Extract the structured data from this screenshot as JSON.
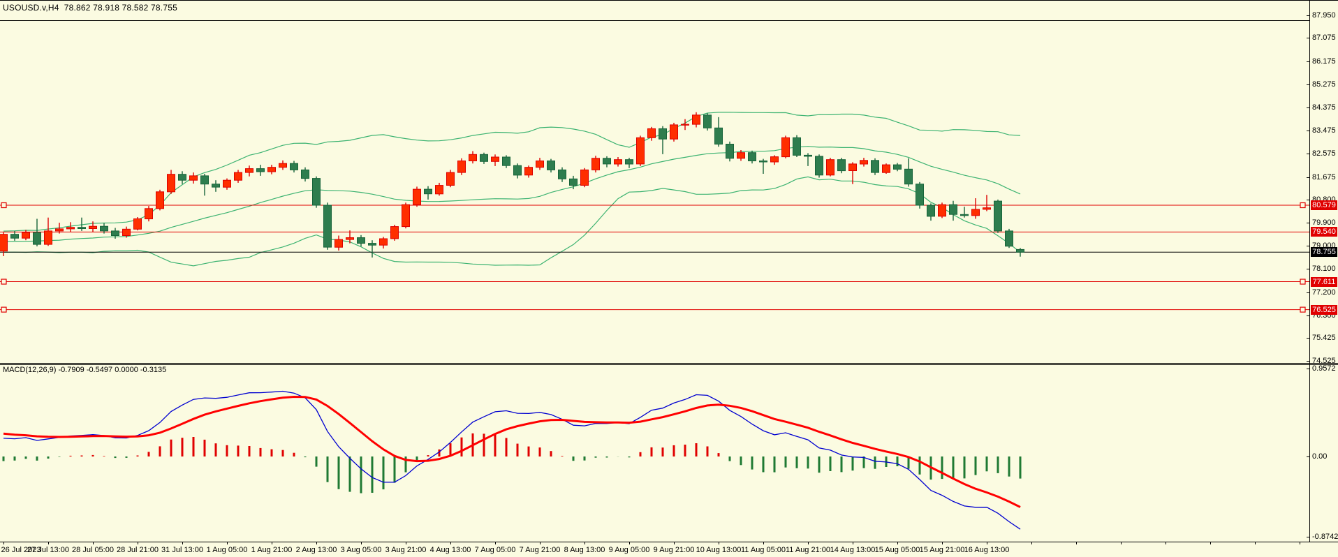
{
  "window": {
    "title": "USOUSD.v,H4  78.862 78.918 78.582 78.755",
    "macd_label": "MACD(12,26,9) -0.7909 -0.5497 0.0000 -0.3135"
  },
  "colors": {
    "background": "#FBFBE1",
    "frame": "#000000",
    "bull_fill": "#FF2E00",
    "bull_border": "#DD0000",
    "bear_fill": "#2E7D4E",
    "bear_border": "#17643A",
    "bollinger": "#3CB371",
    "level_line": "#E00000",
    "bid_line": "#000000",
    "macd_line": "#0000D0",
    "signal_line": "#FF0000",
    "hist_positive": "#E00000",
    "hist_negative": "#1F7A33",
    "badge_red_bg": "#E00000",
    "badge_black_bg": "#000000",
    "badge_text": "#FFFFFF"
  },
  "price_axis": {
    "ticks": [
      "87.950",
      "87.075",
      "86.175",
      "85.275",
      "84.375",
      "83.475",
      "82.575",
      "81.675",
      "80.800",
      "79.900",
      "79.000",
      "78.100",
      "77.200",
      "76.300",
      "75.425",
      "74.525"
    ]
  },
  "macd_axis": {
    "ticks": [
      {
        "label": "0.9572",
        "value": 0.9572
      },
      {
        "label": "0.00",
        "value": 0.0
      },
      {
        "label": "-0.8742",
        "value": -0.8742
      }
    ]
  },
  "time_axis": {
    "labels": [
      "26 Jul 2023",
      "27 Jul 13:00",
      "28 Jul 05:00",
      "28 Jul 21:00",
      "31 Jul 13:00",
      "1 Aug 05:00",
      "1 Aug 21:00",
      "2 Aug 13:00",
      "3 Aug 05:00",
      "3 Aug 21:00",
      "4 Aug 13:00",
      "7 Aug 05:00",
      "7 Aug 21:00",
      "8 Aug 13:00",
      "9 Aug 05:00",
      "9 Aug 21:00",
      "10 Aug 13:00",
      "11 Aug 05:00",
      "11 Aug 21:00",
      "14 Aug 13:00",
      "15 Aug 05:00",
      "15 Aug 21:00",
      "16 Aug 13:00"
    ]
  },
  "price_lines": [
    {
      "price": 80.579,
      "label": "80.579",
      "style": "red",
      "end_squares": true
    },
    {
      "price": 79.54,
      "label": "79.540",
      "style": "red",
      "end_squares": false
    },
    {
      "price": 78.755,
      "label": "78.755",
      "style": "black",
      "end_squares": false
    },
    {
      "price": 77.611,
      "label": "77.611",
      "style": "red",
      "end_squares": true
    },
    {
      "price": 76.525,
      "label": "76.525",
      "style": "red",
      "end_squares": true
    }
  ],
  "chart_data": {
    "type": "candlestick",
    "symbol": "USOUSD.v",
    "timeframe": "H4",
    "last_ohlc": {
      "open": 78.862,
      "high": 78.918,
      "low": 78.582,
      "close": 78.755
    },
    "up_color_meaning": "bullish candles are red, bearish candles are green",
    "indicators": {
      "bollinger": {
        "period": 20,
        "deviation": 2
      },
      "macd": {
        "fast": 12,
        "slow": 26,
        "signal": 9,
        "current": [
          -0.7909,
          -0.5497,
          0.0,
          -0.3135
        ]
      }
    },
    "ylim_main": [
      74.45,
      88.52
    ],
    "ylim_macd": [
      -0.8742,
      0.9572
    ],
    "candles": [
      [
        78.8,
        79.52,
        78.6,
        79.45
      ],
      [
        79.45,
        79.58,
        79.2,
        79.3
      ],
      [
        79.3,
        79.62,
        79.22,
        79.52
      ],
      [
        79.52,
        80.05,
        78.98,
        79.06
      ],
      [
        79.06,
        80.1,
        79.0,
        79.58
      ],
      [
        79.58,
        79.9,
        79.48,
        79.66
      ],
      [
        79.66,
        79.92,
        79.55,
        79.72
      ],
      [
        79.72,
        80.1,
        79.58,
        79.67
      ],
      [
        79.67,
        79.95,
        79.55,
        79.76
      ],
      [
        79.76,
        79.88,
        79.48,
        79.58
      ],
      [
        79.58,
        79.7,
        79.28,
        79.4
      ],
      [
        79.4,
        79.75,
        79.32,
        79.65
      ],
      [
        79.65,
        80.12,
        79.6,
        80.05
      ],
      [
        80.05,
        80.55,
        79.95,
        80.45
      ],
      [
        80.45,
        81.18,
        80.38,
        81.1
      ],
      [
        81.1,
        81.95,
        81.02,
        81.78
      ],
      [
        81.78,
        81.9,
        81.4,
        81.55
      ],
      [
        81.55,
        81.85,
        81.42,
        81.72
      ],
      [
        81.72,
        81.8,
        80.95,
        81.4
      ],
      [
        81.4,
        81.55,
        81.1,
        81.28
      ],
      [
        81.28,
        81.62,
        81.18,
        81.55
      ],
      [
        81.55,
        81.95,
        81.45,
        81.85
      ],
      [
        81.85,
        82.12,
        81.7,
        82.0
      ],
      [
        82.0,
        82.15,
        81.72,
        81.88
      ],
      [
        81.88,
        82.15,
        81.78,
        82.05
      ],
      [
        82.05,
        82.32,
        81.95,
        82.2
      ],
      [
        82.2,
        82.3,
        81.85,
        81.95
      ],
      [
        81.95,
        82.05,
        81.5,
        81.62
      ],
      [
        81.62,
        81.7,
        80.48,
        80.58
      ],
      [
        80.58,
        80.68,
        78.85,
        78.95
      ],
      [
        78.95,
        79.4,
        78.82,
        79.25
      ],
      [
        79.25,
        79.6,
        79.1,
        79.32
      ],
      [
        79.32,
        79.42,
        78.98,
        79.1
      ],
      [
        79.1,
        79.22,
        78.55,
        79.03
      ],
      [
        79.03,
        79.35,
        78.9,
        79.28
      ],
      [
        79.28,
        79.82,
        79.2,
        79.75
      ],
      [
        79.75,
        80.68,
        79.68,
        80.6
      ],
      [
        80.6,
        81.3,
        80.52,
        81.2
      ],
      [
        81.2,
        81.32,
        80.8,
        81.02
      ],
      [
        81.02,
        81.45,
        80.95,
        81.35
      ],
      [
        81.35,
        81.95,
        81.28,
        81.85
      ],
      [
        81.85,
        82.4,
        81.75,
        82.3
      ],
      [
        82.3,
        82.68,
        82.2,
        82.55
      ],
      [
        82.55,
        82.62,
        82.18,
        82.28
      ],
      [
        82.28,
        82.55,
        82.1,
        82.45
      ],
      [
        82.45,
        82.52,
        82.02,
        82.12
      ],
      [
        82.12,
        82.2,
        81.62,
        81.75
      ],
      [
        81.75,
        82.12,
        81.65,
        82.05
      ],
      [
        82.05,
        82.42,
        81.95,
        82.3
      ],
      [
        82.3,
        82.38,
        81.85,
        81.95
      ],
      [
        81.95,
        82.05,
        81.48,
        81.6
      ],
      [
        81.6,
        81.72,
        81.2,
        81.35
      ],
      [
        81.35,
        82.02,
        81.28,
        81.95
      ],
      [
        81.95,
        82.5,
        81.85,
        82.4
      ],
      [
        82.4,
        82.48,
        82.05,
        82.18
      ],
      [
        82.18,
        82.45,
        82.08,
        82.35
      ],
      [
        82.35,
        82.42,
        82.02,
        82.18
      ],
      [
        82.18,
        83.28,
        82.1,
        83.2
      ],
      [
        83.2,
        83.62,
        83.08,
        83.55
      ],
      [
        83.55,
        83.65,
        82.56,
        83.15
      ],
      [
        83.15,
        83.78,
        83.05,
        83.7
      ],
      [
        83.7,
        83.92,
        83.5,
        83.72
      ],
      [
        83.72,
        84.19,
        83.6,
        84.08
      ],
      [
        84.08,
        84.15,
        83.48,
        83.58
      ],
      [
        83.58,
        84.0,
        82.85,
        82.95
      ],
      [
        82.95,
        83.05,
        82.28,
        82.4
      ],
      [
        82.4,
        82.72,
        82.3,
        82.62
      ],
      [
        82.62,
        82.7,
        82.2,
        82.3
      ],
      [
        82.3,
        82.38,
        81.8,
        82.26
      ],
      [
        82.26,
        82.52,
        82.15,
        82.46
      ],
      [
        82.46,
        83.28,
        82.4,
        83.2
      ],
      [
        83.2,
        83.3,
        82.45,
        82.52
      ],
      [
        82.52,
        82.6,
        82.1,
        82.48
      ],
      [
        82.48,
        82.55,
        81.65,
        81.75
      ],
      [
        81.75,
        82.42,
        81.7,
        82.35
      ],
      [
        82.35,
        82.42,
        81.82,
        81.92
      ],
      [
        81.92,
        82.25,
        81.4,
        82.18
      ],
      [
        82.18,
        82.42,
        82.08,
        82.32
      ],
      [
        82.32,
        82.4,
        81.75,
        81.85
      ],
      [
        81.85,
        82.2,
        81.8,
        82.15
      ],
      [
        82.15,
        82.22,
        81.9,
        81.98
      ],
      [
        81.98,
        82.4,
        81.3,
        81.4
      ],
      [
        81.4,
        81.48,
        80.45,
        80.58
      ],
      [
        80.58,
        80.65,
        79.98,
        80.15
      ],
      [
        80.15,
        80.68,
        80.08,
        80.6
      ],
      [
        80.6,
        80.75,
        79.98,
        80.22
      ],
      [
        80.22,
        80.52,
        80.1,
        80.18
      ],
      [
        80.18,
        80.85,
        80.05,
        80.42
      ],
      [
        80.42,
        80.98,
        80.35,
        80.48
      ],
      [
        80.74,
        80.8,
        79.5,
        79.58
      ],
      [
        79.58,
        79.66,
        78.92,
        78.99
      ],
      [
        78.862,
        78.918,
        78.582,
        78.755
      ]
    ]
  }
}
